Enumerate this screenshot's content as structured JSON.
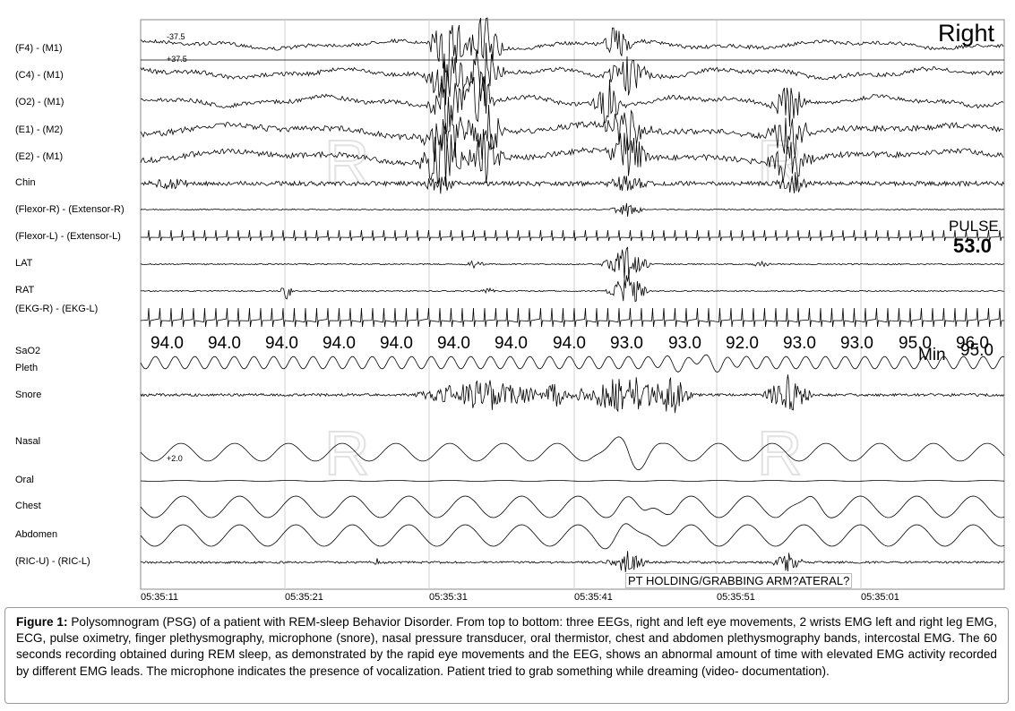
{
  "channels": [
    "(F4) - (M1)",
    "(C4) - (M1)",
    "(O2) - (M1)",
    "(E1) - (M2)",
    "(E2) - (M1)",
    "Chin",
    "(Flexor-R) - (Extensor-R)",
    "(Flexor-L) - (Extensor-L)",
    "LAT",
    "RAT",
    "(EKG-R) - (EKG-L)",
    "SaO2",
    "Pleth",
    "Snore",
    "Nasal",
    "Oral",
    "Chest",
    "Abdomen",
    "(RIC-U) - (RIC-L)"
  ],
  "scale_top": "-37.5",
  "scale_bottom": "+37.5",
  "nasal_scale": "+2.0",
  "right_label": "Right",
  "pulse_label": "PULSE",
  "pulse_value": "53.0",
  "min_label": "Min",
  "min_value": "95.0",
  "sao2_values": [
    "94.0",
    "94.0",
    "94.0",
    "94.0",
    "94.0",
    "94.0",
    "94.0",
    "94.0",
    "93.0",
    "93.0",
    "92.0",
    "93.0",
    "93.0",
    "95.0",
    "96.0"
  ],
  "time_labels": [
    "05:35:11",
    "05:35:21",
    "05:35:31",
    "05:35:41",
    "05:35:51",
    "05:35:01"
  ],
  "annotation": "PT HOLDING/GRABBING ARM?ATERAL?",
  "caption": {
    "label": "Figure 1:",
    "text": " Polysomnogram (PSG) of a patient with REM-sleep Behavior Disorder. From top to bottom: three EEGs, right and left eye movements, 2 wrists EMG left and right leg EMG, ECG, pulse oximetry, finger plethysmography, microphone (snore), nasal pressure transducer, oral thermistor, chest and abdomen plethysmography bands, intercostal EMG. The 60 seconds recording obtained during REM sleep, as demonstrated by the rapid eye movements and the EEG, shows an abnormal amount of time with elevated EMG activity recorded by different EMG leads. The microphone indicates the presence of vocalization. Patient tried to grab something while dreaming (video- documentation)."
  }
}
